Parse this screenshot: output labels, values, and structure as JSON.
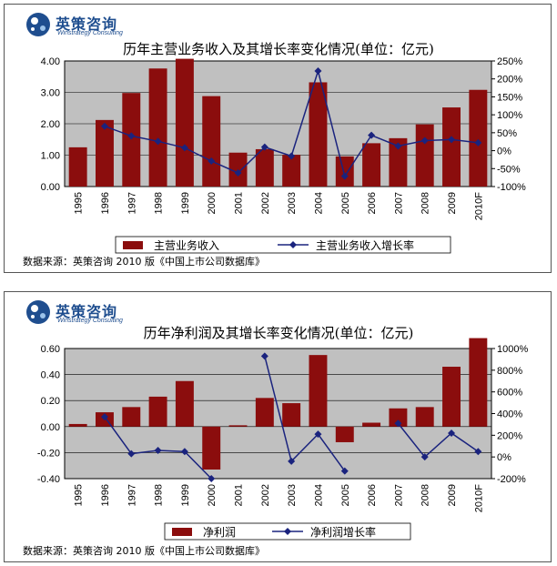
{
  "chart_data": [
    {
      "type": "bar+line",
      "title": "历年主营业务收入及其增长率变化情况(单位：亿元)",
      "categories": [
        "1995",
        "1996",
        "1997",
        "1998",
        "1999",
        "2000",
        "2001",
        "2002",
        "2003",
        "2004",
        "2005",
        "2006",
        "2007",
        "2008",
        "2009",
        "2010F"
      ],
      "series": [
        {
          "name": "主营业务收入",
          "kind": "bar",
          "axis": "left",
          "values": [
            1.25,
            2.12,
            2.98,
            3.76,
            4.07,
            2.88,
            1.08,
            1.19,
            1.01,
            3.32,
            0.96,
            1.38,
            1.54,
            1.98,
            2.52,
            3.08
          ]
        },
        {
          "name": "主营业务收入增长率",
          "kind": "line",
          "axis": "right",
          "values": [
            null,
            68,
            41,
            26,
            8,
            -29,
            -62,
            10,
            -15,
            222,
            -71,
            43,
            13,
            28,
            31,
            22
          ]
        }
      ],
      "y_left": {
        "min": 0,
        "max": 4.0,
        "ticks": [
          0,
          1,
          2,
          3,
          4
        ],
        "labels": [
          "0.00",
          "1.00",
          "2.00",
          "3.00",
          "4.00"
        ]
      },
      "y_right": {
        "min": -100,
        "max": 250,
        "ticks": [
          -100,
          -50,
          0,
          50,
          100,
          150,
          200,
          250
        ],
        "labels": [
          "-100%",
          "-50%",
          "0%",
          "50%",
          "100%",
          "150%",
          "200%",
          "250%"
        ]
      },
      "source": "数据来源：英策咨询 2010 版《中国上市公司数据库》"
    },
    {
      "type": "bar+line",
      "title": "历年净利润及其增长率变化情况(单位：亿元)",
      "categories": [
        "1995",
        "1996",
        "1997",
        "1998",
        "1999",
        "2000",
        "2001",
        "2002",
        "2003",
        "2004",
        "2005",
        "2006",
        "2007",
        "2008",
        "2009",
        "2010F"
      ],
      "series": [
        {
          "name": "净利润",
          "kind": "bar",
          "axis": "left",
          "values": [
            0.02,
            0.11,
            0.15,
            0.23,
            0.35,
            -0.33,
            0.01,
            0.22,
            0.18,
            0.55,
            -0.12,
            0.03,
            0.14,
            0.15,
            0.46,
            0.68
          ]
        },
        {
          "name": "净利润增长率",
          "kind": "line",
          "axis": "right",
          "values": [
            null,
            370,
            30,
            60,
            50,
            -200,
            null,
            930,
            -40,
            210,
            -130,
            null,
            310,
            0,
            220,
            50
          ]
        }
      ],
      "y_left": {
        "min": -0.4,
        "max": 0.6,
        "ticks": [
          -0.4,
          -0.2,
          0,
          0.2,
          0.4,
          0.6
        ],
        "labels": [
          "-0.40",
          "-0.20",
          "0.00",
          "0.20",
          "0.40",
          "0.60"
        ]
      },
      "y_right": {
        "min": -200,
        "max": 1000,
        "ticks": [
          -200,
          0,
          200,
          400,
          600,
          800,
          1000
        ],
        "labels": [
          "-200%",
          "0%",
          "200%",
          "400%",
          "600%",
          "800%",
          "1000%"
        ]
      },
      "source": "数据来源：英策咨询 2010 版《中国上市公司数据库》"
    }
  ],
  "branding": {
    "name": "英策咨询",
    "subtitle": "Winstrategy Consulting"
  },
  "colors": {
    "bar": "#8b0d0d",
    "line": "#1a237e",
    "plot_bg": "#c0c0c0",
    "logo": "#1f4e8f"
  }
}
